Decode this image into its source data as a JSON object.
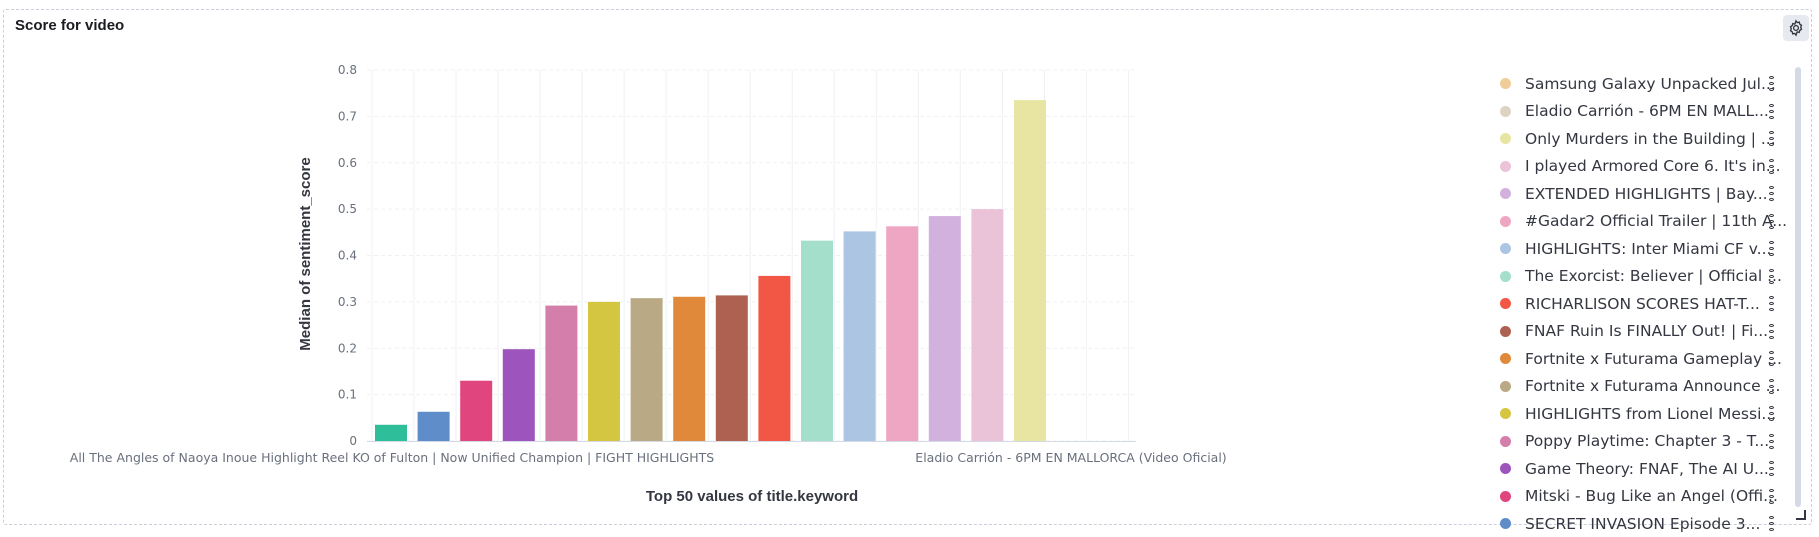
{
  "panel": {
    "title": "Score for video",
    "settings_icon": "gear-icon"
  },
  "chart_data": {
    "type": "bar",
    "title": "",
    "xlabel": "Top 50 values of title.keyword",
    "ylabel": "Median of sentiment_score",
    "ylim": [
      0,
      0.8
    ],
    "yticks": [
      "0",
      "0.1",
      "0.2",
      "0.3",
      "0.4",
      "0.5",
      "0.6",
      "0.7",
      "0.8"
    ],
    "grid": true,
    "legend_position": "right",
    "visible_category_labels": [
      "All The Angles of Naoya Inoue Highlight Reel KO of Fulton | Now Unified Champion | FIGHT HIGHLIGHTS",
      "Eladio Carrión - 6PM EN MALLORCA (Video Oficial)"
    ],
    "values": [
      0.035,
      0.063,
      0.13,
      0.198,
      0.292,
      0.3,
      0.308,
      0.311,
      0.314,
      0.356,
      0.432,
      0.452,
      0.463,
      0.485,
      0.5,
      0.735
    ],
    "colors": [
      "#2ebf9a",
      "#5f8dc9",
      "#e0457d",
      "#9d54bd",
      "#d47eac",
      "#d5c641",
      "#b9a984",
      "#e0893b",
      "#ae6150",
      "#f25746",
      "#a3dfcb",
      "#acc5e3",
      "#efa6c3",
      "#d2b1de",
      "#ebc3d8",
      "#e8e4a1"
    ]
  },
  "legend": {
    "items": [
      {
        "label": "Samsung Galaxy Unpacked Jul...",
        "color": "#f0cd98"
      },
      {
        "label": "Eladio Carrión - 6PM EN MALL...",
        "color": "#ded3c3"
      },
      {
        "label": "Only Murders in the Building | ...",
        "color": "#e8e4a1"
      },
      {
        "label": "I played Armored Core 6. It's in...",
        "color": "#ebc3d8"
      },
      {
        "label": "EXTENDED HIGHLIGHTS | Bay...",
        "color": "#d2b1de"
      },
      {
        "label": "#Gadar2 Official Trailer | 11th A...",
        "color": "#efa6c3"
      },
      {
        "label": "HIGHLIGHTS: Inter Miami CF v...",
        "color": "#acc5e3"
      },
      {
        "label": "The Exorcist: Believer | Official ...",
        "color": "#a3dfcb"
      },
      {
        "label": "RICHARLISON SCORES HAT-T...",
        "color": "#f25746"
      },
      {
        "label": "FNAF Ruin Is FINALLY Out! | Fi...",
        "color": "#ae6150"
      },
      {
        "label": "Fortnite x Futurama Gameplay ...",
        "color": "#e0893b"
      },
      {
        "label": "Fortnite x Futurama Announce ...",
        "color": "#b9a984"
      },
      {
        "label": "HIGHLIGHTS from Lionel Messi...",
        "color": "#d5c641"
      },
      {
        "label": "Poppy Playtime: Chapter 3 - T...",
        "color": "#d47eac"
      },
      {
        "label": "Game Theory: FNAF, The AI U...",
        "color": "#9d54bd"
      },
      {
        "label": "Mitski - Bug Like an Angel (Offi...",
        "color": "#e0457d"
      },
      {
        "label": "SECRET INVASION Episode 3...",
        "color": "#5f8dc9"
      }
    ]
  }
}
